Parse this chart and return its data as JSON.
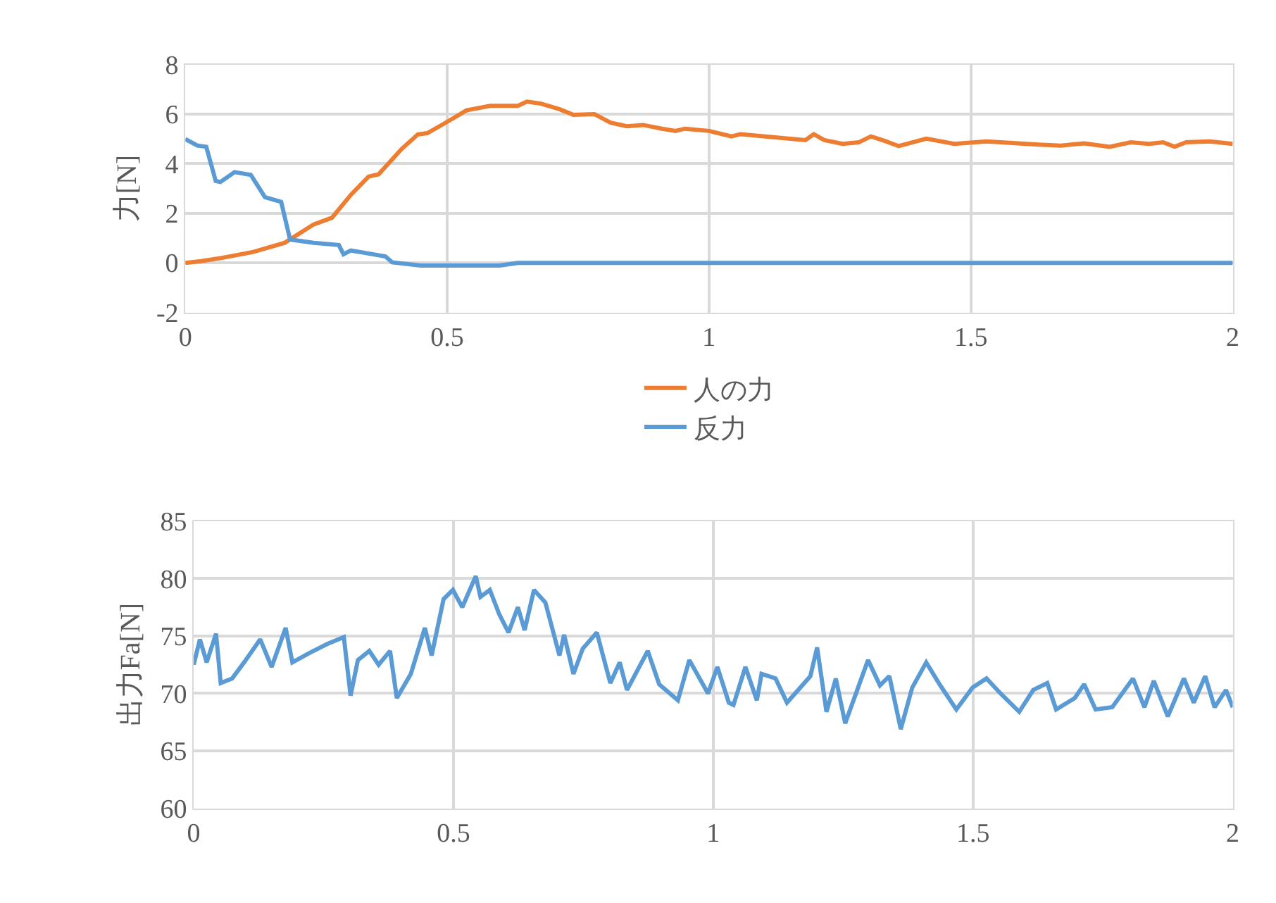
{
  "chart_data": [
    {
      "type": "line",
      "ylabel": "力[N]",
      "xlim": [
        0,
        2
      ],
      "xticks": [
        0,
        0.5,
        1,
        1.5,
        2
      ],
      "ylim": [
        -2,
        8
      ],
      "yticks": [
        -2,
        0,
        2,
        4,
        6,
        8
      ],
      "grid": true,
      "legend": "bottom",
      "marker": "none",
      "line_style": "solid",
      "series": [
        {
          "name": "人の力",
          "color": "#ed7d31",
          "x": [
            0,
            0.03,
            0.07,
            0.13,
            0.19,
            0.245,
            0.28,
            0.316,
            0.35,
            0.369,
            0.413,
            0.444,
            0.462,
            0.493,
            0.537,
            0.582,
            0.635,
            0.652,
            0.679,
            0.714,
            0.741,
            0.781,
            0.812,
            0.843,
            0.874,
            0.91,
            0.936,
            0.954,
            1.0,
            1.043,
            1.06,
            1.104,
            1.184,
            1.2,
            1.22,
            1.255,
            1.286,
            1.309,
            1.335,
            1.362,
            1.415,
            1.468,
            1.53,
            1.628,
            1.672,
            1.716,
            1.765,
            1.805,
            1.84,
            1.867,
            1.889,
            1.911,
            1.956,
            2.0
          ],
          "values": [
            0,
            0.07,
            0.2,
            0.44,
            0.81,
            1.55,
            1.82,
            2.74,
            3.48,
            3.57,
            4.59,
            5.18,
            5.23,
            5.6,
            6.15,
            6.33,
            6.33,
            6.5,
            6.42,
            6.2,
            5.97,
            6.0,
            5.65,
            5.51,
            5.56,
            5.41,
            5.32,
            5.41,
            5.32,
            5.1,
            5.19,
            5.1,
            4.95,
            5.19,
            4.95,
            4.8,
            4.86,
            5.1,
            4.92,
            4.71,
            5.01,
            4.8,
            4.9,
            4.77,
            4.73,
            4.82,
            4.68,
            4.86,
            4.8,
            4.86,
            4.68,
            4.86,
            4.9,
            4.8
          ]
        },
        {
          "name": "反力",
          "color": "#5b9bd5",
          "x": [
            0,
            0.023,
            0.04,
            0.058,
            0.067,
            0.094,
            0.125,
            0.152,
            0.183,
            0.2,
            0.245,
            0.293,
            0.302,
            0.316,
            0.382,
            0.395,
            0.449,
            0.6,
            0.635,
            1.0,
            1.5,
            2.0
          ],
          "values": [
            4.99,
            4.73,
            4.68,
            3.3,
            3.26,
            3.66,
            3.55,
            2.65,
            2.46,
            0.94,
            0.81,
            0.72,
            0.35,
            0.5,
            0.26,
            0.02,
            -0.11,
            -0.11,
            0,
            0,
            0,
            0
          ]
        }
      ]
    },
    {
      "type": "line",
      "ylabel": "出力Fa[N]",
      "xlim": [
        0,
        2
      ],
      "xticks": [
        0,
        0.5,
        1,
        1.5,
        2
      ],
      "ylim": [
        60,
        85
      ],
      "yticks": [
        60,
        65,
        70,
        75,
        80,
        85
      ],
      "grid": true,
      "marker": "none",
      "line_style": "solid",
      "series": [
        {
          "color": "#5b9bd5",
          "x": [
            0,
            0.012,
            0.025,
            0.043,
            0.052,
            0.074,
            0.097,
            0.128,
            0.15,
            0.177,
            0.19,
            0.222,
            0.257,
            0.289,
            0.302,
            0.316,
            0.338,
            0.356,
            0.378,
            0.391,
            0.418,
            0.445,
            0.458,
            0.481,
            0.499,
            0.517,
            0.543,
            0.552,
            0.57,
            0.588,
            0.606,
            0.624,
            0.637,
            0.655,
            0.677,
            0.704,
            0.713,
            0.731,
            0.749,
            0.776,
            0.802,
            0.82,
            0.834,
            0.874,
            0.896,
            0.932,
            0.954,
            0.99,
            1.008,
            1.03,
            1.039,
            1.062,
            1.084,
            1.093,
            1.12,
            1.142,
            1.187,
            1.2,
            1.218,
            1.236,
            1.254,
            1.298,
            1.321,
            1.339,
            1.361,
            1.383,
            1.41,
            1.437,
            1.468,
            1.499,
            1.526,
            1.553,
            1.589,
            1.616,
            1.643,
            1.66,
            1.696,
            1.714,
            1.736,
            1.768,
            1.808,
            1.83,
            1.848,
            1.875,
            1.906,
            1.925,
            1.947,
            1.965,
            1.987,
            2.0
          ],
          "values": [
            72.5,
            74.7,
            72.7,
            75.2,
            70.9,
            71.3,
            72.7,
            74.7,
            72.3,
            75.7,
            72.7,
            73.5,
            74.3,
            74.9,
            69.8,
            72.9,
            73.7,
            72.5,
            73.7,
            69.6,
            71.7,
            75.7,
            73.3,
            78.2,
            79.0,
            77.5,
            80.2,
            78.4,
            79.0,
            76.9,
            75.3,
            77.5,
            75.5,
            79.0,
            77.9,
            73.3,
            75.1,
            71.7,
            73.9,
            75.3,
            70.9,
            72.7,
            70.3,
            73.7,
            70.8,
            69.4,
            72.9,
            70.0,
            72.3,
            69.2,
            69.0,
            72.3,
            69.4,
            71.7,
            71.3,
            69.2,
            71.5,
            74.0,
            68.4,
            71.3,
            67.4,
            72.9,
            70.7,
            71.5,
            66.9,
            70.5,
            72.7,
            70.7,
            68.6,
            70.5,
            71.3,
            70.0,
            68.4,
            70.3,
            70.9,
            68.6,
            69.6,
            70.8,
            68.6,
            68.8,
            71.3,
            68.8,
            71.1,
            68.0,
            71.3,
            69.2,
            71.5,
            68.8,
            70.3,
            68.8
          ]
        }
      ]
    }
  ]
}
